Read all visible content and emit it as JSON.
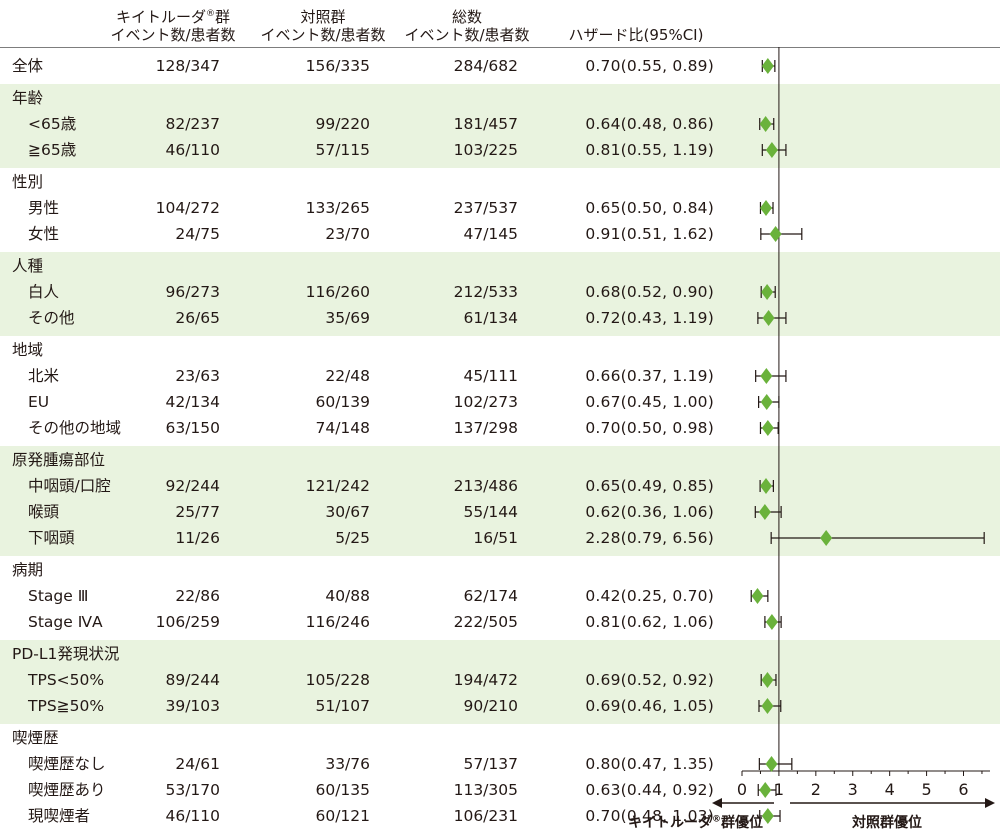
{
  "header": {
    "keytruda_group": [
      "キイトルーダ",
      "群"
    ],
    "registered_mark": "®",
    "control_group": "対照群",
    "total": "総数",
    "events_patients": "イベント数/患者数",
    "hazard_ratio": "ハザード比(95%CI)"
  },
  "footer": {
    "favors_keytruda": [
      "キイトルーダ",
      "群優位"
    ],
    "favors_control": "対照群優位"
  },
  "chart_data": {
    "type": "forest",
    "x_axis": {
      "min": 0,
      "max": 6.6,
      "ticks": [
        0,
        1,
        2,
        3,
        4,
        5,
        6
      ],
      "reference_line": 1
    },
    "marker_color": "#6ab23b",
    "shade_color": "#e9f3df",
    "groups": [
      {
        "title": "",
        "shaded": false,
        "rows": [
          {
            "label": "全体",
            "kt": "128/347",
            "ctl": "156/335",
            "total": "284/682",
            "hr_text": "0.70(0.55, 0.89)",
            "hr": 0.7,
            "lo": 0.55,
            "hi": 0.89
          }
        ]
      },
      {
        "title": "年齢",
        "shaded": true,
        "rows": [
          {
            "label": "<65歳",
            "kt": "82/237",
            "ctl": "99/220",
            "total": "181/457",
            "hr_text": "0.64(0.48, 0.86)",
            "hr": 0.64,
            "lo": 0.48,
            "hi": 0.86
          },
          {
            "label": "≧65歳",
            "kt": "46/110",
            "ctl": "57/115",
            "total": "103/225",
            "hr_text": "0.81(0.55, 1.19)",
            "hr": 0.81,
            "lo": 0.55,
            "hi": 1.19
          }
        ]
      },
      {
        "title": "性別",
        "shaded": false,
        "rows": [
          {
            "label": "男性",
            "kt": "104/272",
            "ctl": "133/265",
            "total": "237/537",
            "hr_text": "0.65(0.50, 0.84)",
            "hr": 0.65,
            "lo": 0.5,
            "hi": 0.84
          },
          {
            "label": "女性",
            "kt": "24/75",
            "ctl": "23/70",
            "total": "47/145",
            "hr_text": "0.91(0.51, 1.62)",
            "hr": 0.91,
            "lo": 0.51,
            "hi": 1.62
          }
        ]
      },
      {
        "title": "人種",
        "shaded": true,
        "rows": [
          {
            "label": "白人",
            "kt": "96/273",
            "ctl": "116/260",
            "total": "212/533",
            "hr_text": "0.68(0.52, 0.90)",
            "hr": 0.68,
            "lo": 0.52,
            "hi": 0.9
          },
          {
            "label": "その他",
            "kt": "26/65",
            "ctl": "35/69",
            "total": "61/134",
            "hr_text": "0.72(0.43, 1.19)",
            "hr": 0.72,
            "lo": 0.43,
            "hi": 1.19
          }
        ]
      },
      {
        "title": "地域",
        "shaded": false,
        "rows": [
          {
            "label": "北米",
            "kt": "23/63",
            "ctl": "22/48",
            "total": "45/111",
            "hr_text": "0.66(0.37, 1.19)",
            "hr": 0.66,
            "lo": 0.37,
            "hi": 1.19
          },
          {
            "label": "EU",
            "kt": "42/134",
            "ctl": "60/139",
            "total": "102/273",
            "hr_text": "0.67(0.45, 1.00)",
            "hr": 0.67,
            "lo": 0.45,
            "hi": 1.0
          },
          {
            "label": "その他の地域",
            "kt": "63/150",
            "ctl": "74/148",
            "total": "137/298",
            "hr_text": "0.70(0.50, 0.98)",
            "hr": 0.7,
            "lo": 0.5,
            "hi": 0.98
          }
        ]
      },
      {
        "title": "原発腫瘍部位",
        "shaded": true,
        "rows": [
          {
            "label": "中咽頭/口腔",
            "kt": "92/244",
            "ctl": "121/242",
            "total": "213/486",
            "hr_text": "0.65(0.49, 0.85)",
            "hr": 0.65,
            "lo": 0.49,
            "hi": 0.85
          },
          {
            "label": "喉頭",
            "kt": "25/77",
            "ctl": "30/67",
            "total": "55/144",
            "hr_text": "0.62(0.36, 1.06)",
            "hr": 0.62,
            "lo": 0.36,
            "hi": 1.06
          },
          {
            "label": "下咽頭",
            "kt": "11/26",
            "ctl": "5/25",
            "total": "16/51",
            "hr_text": "2.28(0.79, 6.56)",
            "hr": 2.28,
            "lo": 0.79,
            "hi": 6.56
          }
        ]
      },
      {
        "title": "病期",
        "shaded": false,
        "rows": [
          {
            "label": "Stage Ⅲ",
            "kt": "22/86",
            "ctl": "40/88",
            "total": "62/174",
            "hr_text": "0.42(0.25, 0.70)",
            "hr": 0.42,
            "lo": 0.25,
            "hi": 0.7
          },
          {
            "label": "Stage ⅣA",
            "kt": "106/259",
            "ctl": "116/246",
            "total": "222/505",
            "hr_text": "0.81(0.62, 1.06)",
            "hr": 0.81,
            "lo": 0.62,
            "hi": 1.06
          }
        ]
      },
      {
        "title": "PD-L1発現状況",
        "shaded": true,
        "rows": [
          {
            "label": "TPS<50%",
            "kt": "89/244",
            "ctl": "105/228",
            "total": "194/472",
            "hr_text": "0.69(0.52, 0.92)",
            "hr": 0.69,
            "lo": 0.52,
            "hi": 0.92
          },
          {
            "label": "TPS≧50%",
            "kt": "39/103",
            "ctl": "51/107",
            "total": "90/210",
            "hr_text": "0.69(0.46, 1.05)",
            "hr": 0.69,
            "lo": 0.46,
            "hi": 1.05
          }
        ]
      },
      {
        "title": "喫煙歴",
        "shaded": false,
        "rows": [
          {
            "label": "喫煙歴なし",
            "kt": "24/61",
            "ctl": "33/76",
            "total": "57/137",
            "hr_text": "0.80(0.47, 1.35)",
            "hr": 0.8,
            "lo": 0.47,
            "hi": 1.35
          },
          {
            "label": "喫煙歴あり",
            "kt": "53/170",
            "ctl": "60/135",
            "total": "113/305",
            "hr_text": "0.63(0.44, 0.92)",
            "hr": 0.63,
            "lo": 0.44,
            "hi": 0.92
          },
          {
            "label": "現喫煙者",
            "kt": "46/110",
            "ctl": "60/121",
            "total": "106/231",
            "hr_text": "0.70(0.48, 1.03)",
            "hr": 0.7,
            "lo": 0.48,
            "hi": 1.03
          }
        ]
      }
    ]
  }
}
